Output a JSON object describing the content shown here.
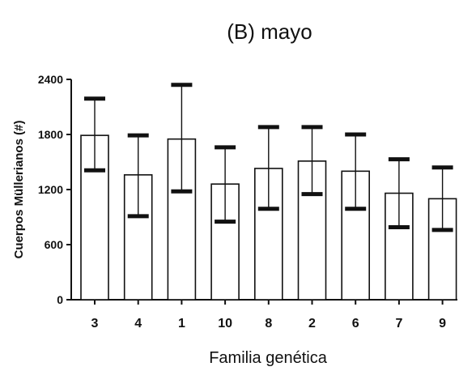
{
  "chart_data": {
    "type": "bar",
    "title": "(B) mayo",
    "xlabel": "Familia genética",
    "ylabel": "Cuerpos Müllerianos (#)",
    "ylim": [
      0,
      2400
    ],
    "yticks": [
      0,
      600,
      1200,
      1800,
      2400
    ],
    "categories": [
      "3",
      "4",
      "1",
      "10",
      "8",
      "2",
      "6",
      "7",
      "9"
    ],
    "values": [
      1790,
      1360,
      1750,
      1260,
      1430,
      1510,
      1400,
      1160,
      1100
    ],
    "error_upper": [
      2190,
      1790,
      2340,
      1660,
      1880,
      1880,
      1800,
      1530,
      1440
    ],
    "error_lower": [
      1410,
      910,
      1180,
      850,
      990,
      1150,
      990,
      790,
      760
    ],
    "grid": false,
    "legend": "none",
    "colors": {
      "bar_fill": "#ffffff",
      "stroke": "#111111"
    }
  }
}
